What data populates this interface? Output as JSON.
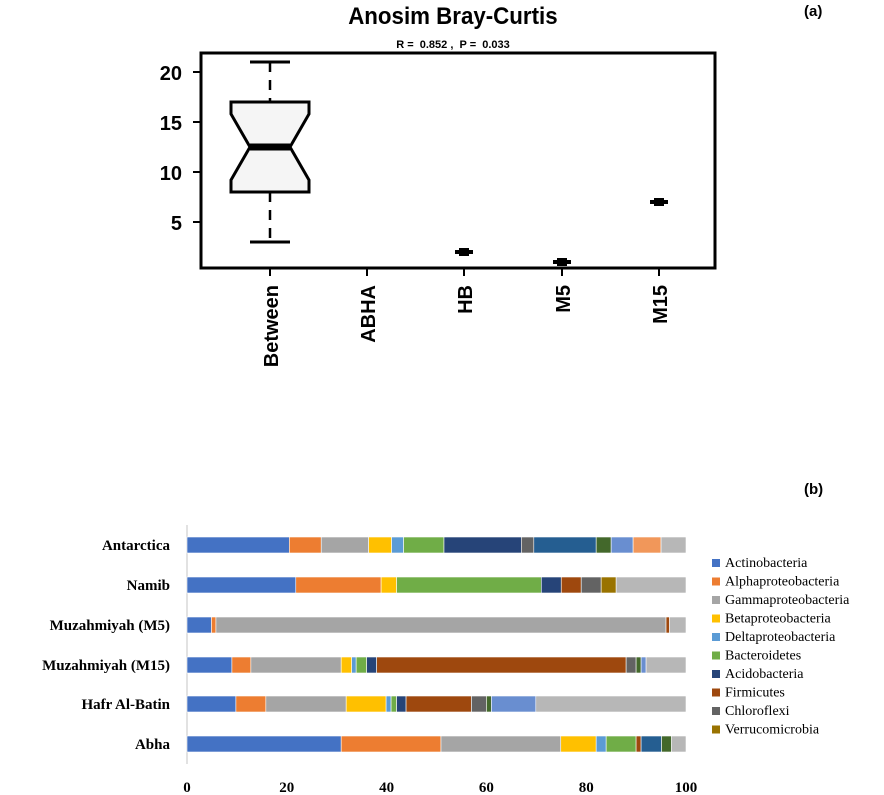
{
  "chart_data": [
    {
      "type": "box",
      "panel_label": "(a)",
      "title": "Anosim Bray-Curtis",
      "subtitle": "R =  0.852 ,  P =  0.033",
      "categories": [
        "Between",
        "ABHA",
        "HB",
        "M5",
        "M15"
      ],
      "yticks": [
        5,
        10,
        15,
        20
      ],
      "ylim": [
        0.4,
        21.9
      ],
      "boxes": [
        {
          "category": "Between",
          "min": 3,
          "q1": 8,
          "median": 12.5,
          "q3": 17,
          "max": 21,
          "notch_low": 9.2,
          "notch_high": 15.8
        },
        {
          "category": "ABHA",
          "value": null
        },
        {
          "category": "HB",
          "value": 2
        },
        {
          "category": "M5",
          "value": 1
        },
        {
          "category": "M15",
          "value": 7
        }
      ]
    },
    {
      "type": "stacked-bar-horizontal",
      "panel_label": "(b)",
      "xlim": [
        0,
        100
      ],
      "xticks": [
        0,
        20,
        40,
        60,
        80,
        100
      ],
      "legend_position": "right",
      "series": [
        {
          "name": "Actinobacteria",
          "color": "#4472C4"
        },
        {
          "name": "Alphaproteobacteria",
          "color": "#ED7D31"
        },
        {
          "name": "Gammaproteobacteria",
          "color": "#A5A5A5"
        },
        {
          "name": "Betaproteobacteria",
          "color": "#FFC000"
        },
        {
          "name": "Deltaproteobacteria",
          "color": "#5B9BD5"
        },
        {
          "name": "Bacteroidetes",
          "color": "#70AD47"
        },
        {
          "name": "Acidobacteria",
          "color": "#264478"
        },
        {
          "name": "Firmicutes",
          "color": "#9E480E"
        },
        {
          "name": "Chloroflexi",
          "color": "#636363"
        },
        {
          "name": "Verrucomicrobia",
          "color": "#997300"
        },
        {
          "name": null,
          "color": "#255E91"
        },
        {
          "name": null,
          "color": "#43682B"
        },
        {
          "name": null,
          "color": "#698ED0"
        },
        {
          "name": null,
          "color": "#F1975A"
        },
        {
          "name": null,
          "color": "#B7B7B7"
        }
      ],
      "categories": [
        "Antarctica",
        "Namib",
        "Muzahmiyah (M5)",
        "Muzahmiyah (M15)",
        "Hafr Al-Batin",
        "Abha"
      ],
      "values": [
        [
          20.5,
          6.4,
          9.5,
          4.6,
          2.4,
          8.1,
          15.5,
          0,
          2.5,
          0,
          12.5,
          3.0,
          4.4,
          5.6,
          5.0
        ],
        [
          21.8,
          17.1,
          0,
          3.1,
          0,
          29.0,
          4.0,
          4.0,
          4.0,
          3.0,
          0,
          0,
          0,
          0,
          14.0
        ],
        [
          4.9,
          0.9,
          90.2,
          0,
          0,
          0,
          0,
          0.7,
          0,
          0,
          0,
          0,
          0,
          0,
          3.3
        ],
        [
          9.0,
          3.8,
          18.1,
          2.1,
          0.9,
          2.1,
          2.0,
          50.0,
          2.0,
          0,
          0,
          1.0,
          1.0,
          0,
          8.0
        ],
        [
          9.8,
          6.0,
          16.1,
          8.0,
          1.0,
          1.1,
          1.9,
          13.1,
          3.0,
          0,
          0,
          1.0,
          8.9,
          0,
          30.1
        ],
        [
          30.9,
          20.0,
          24.0,
          7.1,
          2.0,
          6.0,
          0,
          1.0,
          0,
          0,
          4.1,
          2.0,
          0,
          0,
          2.9
        ]
      ]
    }
  ]
}
